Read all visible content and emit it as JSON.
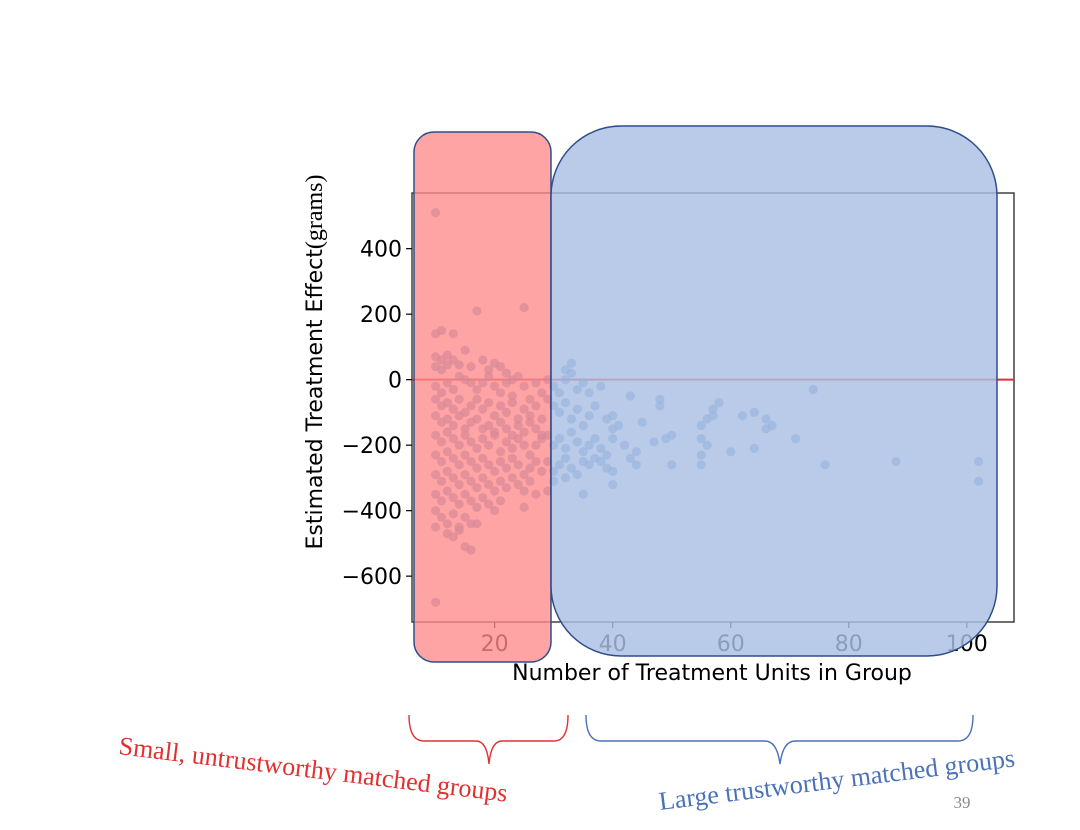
{
  "chart_data": {
    "type": "scatter",
    "title": "",
    "xlabel": "Number of Treatment Units in Group",
    "ylabel_main": "Estimated Treatment Effect",
    "ylabel_unit": "(grams)",
    "xlim": [
      6,
      108
    ],
    "ylim": [
      -740,
      570
    ],
    "xticks": [
      20,
      40,
      60,
      80,
      100
    ],
    "yticks": [
      400,
      200,
      0,
      -200,
      -400,
      -600
    ],
    "xtick_labels": [
      "20",
      "40",
      "60",
      "80",
      "100"
    ],
    "ytick_labels": [
      "400",
      "200",
      "0",
      "−200",
      "−400",
      "−600"
    ],
    "zero_line": 0,
    "colors": {
      "points": "#4a7dbf",
      "zero_line": "#e03030",
      "small_region_fill": "#ff8a8a",
      "large_region_fill": "#a9bfe3",
      "region_border": "#2e4e8a",
      "small_brace": "#e23030",
      "large_brace": "#4a72b8"
    },
    "series": [
      {
        "values": [
          [
            10,
            510
          ],
          [
            10,
            140
          ],
          [
            11,
            150
          ],
          [
            13,
            140
          ],
          [
            10,
            70
          ],
          [
            11,
            60
          ],
          [
            12,
            75
          ],
          [
            10,
            40
          ],
          [
            11,
            30
          ],
          [
            12,
            45
          ],
          [
            13,
            60
          ],
          [
            14,
            45
          ],
          [
            15,
            90
          ],
          [
            16,
            40
          ],
          [
            17,
            210
          ],
          [
            18,
            60
          ],
          [
            19,
            30
          ],
          [
            20,
            50
          ],
          [
            21,
            40
          ],
          [
            22,
            20
          ],
          [
            23,
            0
          ],
          [
            25,
            220
          ],
          [
            10,
            -20
          ],
          [
            11,
            -40
          ],
          [
            12,
            -10
          ],
          [
            13,
            -30
          ],
          [
            14,
            10
          ],
          [
            15,
            0
          ],
          [
            16,
            -10
          ],
          [
            17,
            -30
          ],
          [
            18,
            -10
          ],
          [
            19,
            10
          ],
          [
            20,
            -20
          ],
          [
            21,
            -40
          ],
          [
            22,
            -10
          ],
          [
            23,
            -50
          ],
          [
            24,
            10
          ],
          [
            25,
            -20
          ],
          [
            26,
            -60
          ],
          [
            27,
            -10
          ],
          [
            28,
            -40
          ],
          [
            10,
            -60
          ],
          [
            11,
            -80
          ],
          [
            12,
            -70
          ],
          [
            13,
            -90
          ],
          [
            14,
            -60
          ],
          [
            15,
            -100
          ],
          [
            16,
            -80
          ],
          [
            17,
            -60
          ],
          [
            18,
            -90
          ],
          [
            19,
            -70
          ],
          [
            20,
            -110
          ],
          [
            21,
            -80
          ],
          [
            22,
            -100
          ],
          [
            23,
            -70
          ],
          [
            24,
            -120
          ],
          [
            25,
            -90
          ],
          [
            26,
            -110
          ],
          [
            27,
            -80
          ],
          [
            28,
            -120
          ],
          [
            10,
            -110
          ],
          [
            11,
            -130
          ],
          [
            12,
            -120
          ],
          [
            13,
            -140
          ],
          [
            14,
            -110
          ],
          [
            15,
            -150
          ],
          [
            16,
            -130
          ],
          [
            17,
            -120
          ],
          [
            18,
            -150
          ],
          [
            19,
            -140
          ],
          [
            20,
            -160
          ],
          [
            21,
            -130
          ],
          [
            22,
            -150
          ],
          [
            23,
            -170
          ],
          [
            24,
            -140
          ],
          [
            25,
            -160
          ],
          [
            26,
            -130
          ],
          [
            27,
            -150
          ],
          [
            28,
            -170
          ],
          [
            10,
            -170
          ],
          [
            11,
            -190
          ],
          [
            12,
            -160
          ],
          [
            13,
            -180
          ],
          [
            14,
            -200
          ],
          [
            15,
            -170
          ],
          [
            16,
            -190
          ],
          [
            17,
            -210
          ],
          [
            18,
            -180
          ],
          [
            19,
            -200
          ],
          [
            20,
            -170
          ],
          [
            21,
            -220
          ],
          [
            22,
            -190
          ],
          [
            23,
            -210
          ],
          [
            24,
            -180
          ],
          [
            25,
            -200
          ],
          [
            26,
            -230
          ],
          [
            27,
            -200
          ],
          [
            28,
            -180
          ],
          [
            10,
            -230
          ],
          [
            11,
            -250
          ],
          [
            12,
            -220
          ],
          [
            13,
            -240
          ],
          [
            14,
            -260
          ],
          [
            15,
            -230
          ],
          [
            16,
            -250
          ],
          [
            17,
            -270
          ],
          [
            18,
            -240
          ],
          [
            19,
            -260
          ],
          [
            20,
            -280
          ],
          [
            21,
            -250
          ],
          [
            22,
            -270
          ],
          [
            23,
            -240
          ],
          [
            24,
            -260
          ],
          [
            25,
            -290
          ],
          [
            26,
            -270
          ],
          [
            27,
            -250
          ],
          [
            28,
            -280
          ],
          [
            10,
            -290
          ],
          [
            11,
            -310
          ],
          [
            12,
            -280
          ],
          [
            13,
            -300
          ],
          [
            14,
            -320
          ],
          [
            15,
            -290
          ],
          [
            16,
            -310
          ],
          [
            17,
            -330
          ],
          [
            18,
            -300
          ],
          [
            19,
            -320
          ],
          [
            20,
            -340
          ],
          [
            21,
            -310
          ],
          [
            22,
            -330
          ],
          [
            23,
            -300
          ],
          [
            24,
            -320
          ],
          [
            25,
            -340
          ],
          [
            26,
            -310
          ],
          [
            27,
            -350
          ],
          [
            10,
            -350
          ],
          [
            11,
            -370
          ],
          [
            12,
            -340
          ],
          [
            13,
            -360
          ],
          [
            14,
            -380
          ],
          [
            15,
            -350
          ],
          [
            16,
            -370
          ],
          [
            17,
            -390
          ],
          [
            18,
            -360
          ],
          [
            19,
            -380
          ],
          [
            20,
            -400
          ],
          [
            21,
            -370
          ],
          [
            25,
            -390
          ],
          [
            10,
            -400
          ],
          [
            11,
            -420
          ],
          [
            12,
            -440
          ],
          [
            13,
            -410
          ],
          [
            14,
            -450
          ],
          [
            15,
            -420
          ],
          [
            16,
            -440
          ],
          [
            17,
            -440
          ],
          [
            10,
            -450
          ],
          [
            12,
            -470
          ],
          [
            13,
            -480
          ],
          [
            14,
            -460
          ],
          [
            15,
            -510
          ],
          [
            16,
            -520
          ],
          [
            10,
            -680
          ],
          [
            29,
            0
          ],
          [
            30,
            -20
          ],
          [
            31,
            -40
          ],
          [
            32,
            0
          ],
          [
            32,
            30
          ],
          [
            33,
            50
          ],
          [
            33,
            20
          ],
          [
            34,
            -30
          ],
          [
            35,
            -10
          ],
          [
            36,
            -40
          ],
          [
            29,
            -60
          ],
          [
            30,
            -80
          ],
          [
            31,
            -100
          ],
          [
            32,
            -70
          ],
          [
            33,
            -120
          ],
          [
            34,
            -90
          ],
          [
            35,
            -140
          ],
          [
            36,
            -110
          ],
          [
            37,
            -80
          ],
          [
            38,
            -20
          ],
          [
            39,
            -120
          ],
          [
            40,
            -110
          ],
          [
            40,
            -150
          ],
          [
            41,
            -140
          ],
          [
            43,
            -50
          ],
          [
            45,
            -130
          ],
          [
            48,
            -60
          ],
          [
            48,
            -80
          ],
          [
            50,
            -170
          ],
          [
            55,
            -140
          ],
          [
            56,
            -120
          ],
          [
            57,
            -90
          ],
          [
            57,
            -110
          ],
          [
            58,
            -70
          ],
          [
            62,
            -110
          ],
          [
            64,
            -100
          ],
          [
            66,
            -120
          ],
          [
            66,
            -150
          ],
          [
            67,
            -140
          ],
          [
            71,
            -180
          ],
          [
            74,
            -30
          ],
          [
            29,
            -170
          ],
          [
            30,
            -200
          ],
          [
            31,
            -180
          ],
          [
            32,
            -210
          ],
          [
            33,
            -160
          ],
          [
            34,
            -190
          ],
          [
            35,
            -220
          ],
          [
            36,
            -200
          ],
          [
            37,
            -180
          ],
          [
            38,
            -210
          ],
          [
            39,
            -230
          ],
          [
            40,
            -180
          ],
          [
            42,
            -200
          ],
          [
            44,
            -220
          ],
          [
            47,
            -190
          ],
          [
            49,
            -180
          ],
          [
            55,
            -180
          ],
          [
            56,
            -200
          ],
          [
            60,
            -220
          ],
          [
            64,
            -210
          ],
          [
            29,
            -250
          ],
          [
            30,
            -280
          ],
          [
            31,
            -260
          ],
          [
            32,
            -240
          ],
          [
            33,
            -270
          ],
          [
            34,
            -290
          ],
          [
            35,
            -250
          ],
          [
            36,
            -260
          ],
          [
            37,
            -240
          ],
          [
            38,
            -250
          ],
          [
            39,
            -270
          ],
          [
            40,
            -280
          ],
          [
            43,
            -240
          ],
          [
            44,
            -260
          ],
          [
            50,
            -260
          ],
          [
            55,
            -230
          ],
          [
            55,
            -260
          ],
          [
            76,
            -260
          ],
          [
            88,
            -250
          ],
          [
            102,
            -250
          ],
          [
            102,
            -310
          ],
          [
            29,
            -340
          ],
          [
            30,
            -310
          ],
          [
            32,
            -300
          ],
          [
            35,
            -350
          ],
          [
            40,
            -320
          ]
        ]
      }
    ]
  },
  "annotations": {
    "small_groups": "Small, untrustworthy matched groups",
    "large_groups": "Large trustworthy matched groups"
  },
  "slide": {
    "page_number": "39"
  }
}
